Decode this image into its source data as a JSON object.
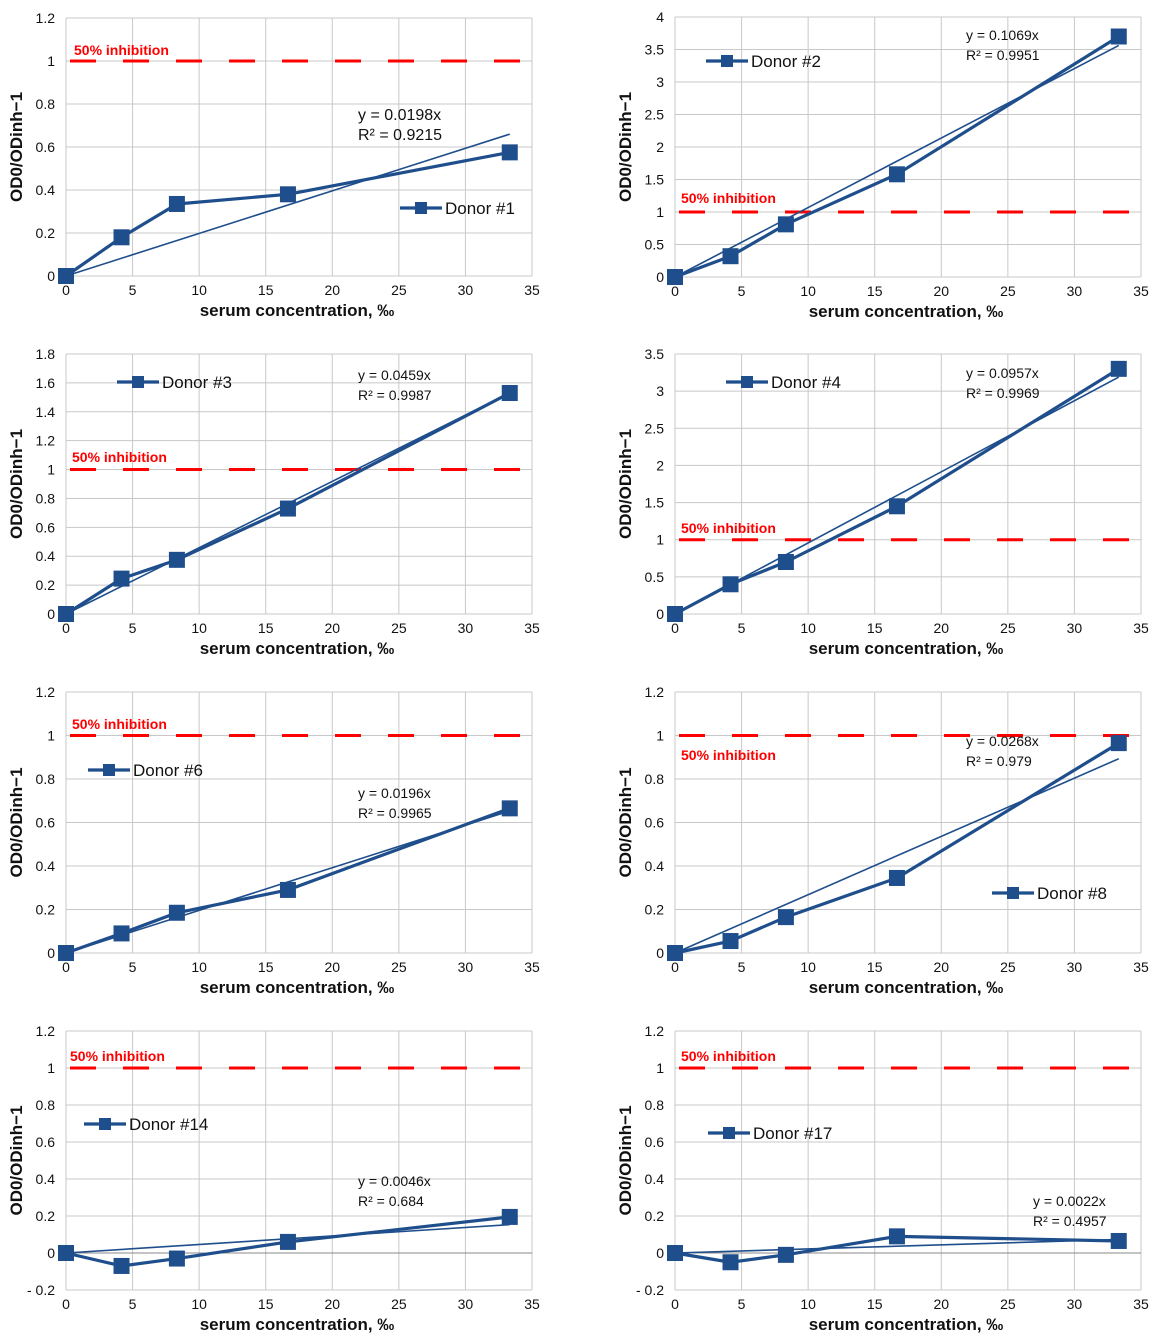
{
  "chart_data": [
    {
      "type": "line",
      "series": [
        {
          "name": "Donor #1",
          "x": [
            0,
            4.17,
            8.33,
            16.67,
            33.33
          ],
          "values": [
            0,
            0.18,
            0.335,
            0.38,
            0.575
          ]
        }
      ],
      "trendline": {
        "slope": 0.0198,
        "equation": "y = 0.0198x",
        "r2": "R² = 0.9215"
      },
      "inhibition": {
        "y": 1,
        "label": "50% inhibition"
      },
      "xlabel": "serum concentration, ‰",
      "ylabel": "OD0/ODinh−1",
      "xlim": [
        0,
        35
      ],
      "xstep": 5,
      "ylim": [
        0,
        1.2
      ],
      "ystep": 0.2,
      "xticks": [
        "0",
        "5",
        "10",
        "15",
        "20",
        "25",
        "30",
        "35"
      ],
      "yticks": [
        "0",
        "0.2",
        "0.4",
        "0.6",
        "0.8",
        "1",
        "1.2"
      ],
      "legend": "right-middle",
      "grid": true
    },
    {
      "type": "line",
      "series": [
        {
          "name": "Donor #2",
          "x": [
            0,
            4.17,
            8.33,
            16.67,
            33.33
          ],
          "values": [
            0,
            0.32,
            0.81,
            1.58,
            3.7
          ]
        }
      ],
      "trendline": {
        "slope": 0.1069,
        "equation": "y = 0.1069x",
        "r2": "R² = 0.9951"
      },
      "inhibition": {
        "y": 1,
        "label": "50% inhibition"
      },
      "xlabel": "serum concentration, ‰",
      "ylabel": "OD0/ODinh−1",
      "xlim": [
        0,
        35
      ],
      "xstep": 5,
      "ylim": [
        0,
        4
      ],
      "ystep": 0.5,
      "xticks": [
        "0",
        "5",
        "10",
        "15",
        "20",
        "25",
        "30",
        "35"
      ],
      "yticks": [
        "0",
        "0.5",
        "1",
        "1.5",
        "2",
        "2.5",
        "3",
        "3.5",
        "4"
      ],
      "legend": "top-left",
      "grid": true
    },
    {
      "type": "line",
      "series": [
        {
          "name": "Donor #3",
          "x": [
            0,
            4.17,
            8.33,
            16.67,
            33.33
          ],
          "values": [
            0,
            0.245,
            0.375,
            0.73,
            1.53
          ]
        }
      ],
      "trendline": {
        "slope": 0.0459,
        "equation": "y = 0.0459x",
        "r2": "R² = 0.9987"
      },
      "inhibition": {
        "y": 1,
        "label": "50% inhibition"
      },
      "xlabel": "serum concentration, ‰",
      "ylabel": "OD0/ODinh−1",
      "xlim": [
        0,
        35
      ],
      "xstep": 5,
      "ylim": [
        0,
        1.8
      ],
      "ystep": 0.2,
      "xticks": [
        "0",
        "5",
        "10",
        "15",
        "20",
        "25",
        "30",
        "35"
      ],
      "yticks": [
        "0",
        "0.2",
        "0.4",
        "0.6",
        "0.8",
        "1",
        "1.2",
        "1.4",
        "1.6",
        "1.8"
      ],
      "legend": "top-left",
      "grid": true
    },
    {
      "type": "line",
      "series": [
        {
          "name": "Donor #4",
          "x": [
            0,
            4.17,
            8.33,
            16.67,
            33.33
          ],
          "values": [
            0,
            0.4,
            0.7,
            1.45,
            3.3
          ]
        }
      ],
      "trendline": {
        "slope": 0.0957,
        "equation": "y = 0.0957x",
        "r2": "R² = 0.9969"
      },
      "inhibition": {
        "y": 1,
        "label": "50% inhibition"
      },
      "xlabel": "serum concentration, ‰",
      "ylabel": "OD0/ODinh−1",
      "xlim": [
        0,
        35
      ],
      "xstep": 5,
      "ylim": [
        0,
        3.5
      ],
      "ystep": 0.5,
      "xticks": [
        "0",
        "5",
        "10",
        "15",
        "20",
        "25",
        "30",
        "35"
      ],
      "yticks": [
        "0",
        "0.5",
        "1",
        "1.5",
        "2",
        "2.5",
        "3",
        "3.5"
      ],
      "legend": "top-left",
      "grid": true
    },
    {
      "type": "line",
      "series": [
        {
          "name": "Donor #6",
          "x": [
            0,
            4.17,
            8.33,
            16.67,
            33.33
          ],
          "values": [
            0,
            0.09,
            0.185,
            0.29,
            0.665
          ]
        }
      ],
      "trendline": {
        "slope": 0.0196,
        "equation": "y = 0.0196x",
        "r2": "R² = 0.9965"
      },
      "inhibition": {
        "y": 1,
        "label": "50% inhibition"
      },
      "xlabel": "serum concentration, ‰",
      "ylabel": "OD0/ODinh−1",
      "xlim": [
        0,
        35
      ],
      "xstep": 5,
      "ylim": [
        0,
        1.2
      ],
      "ystep": 0.2,
      "xticks": [
        "0",
        "5",
        "10",
        "15",
        "20",
        "25",
        "30",
        "35"
      ],
      "yticks": [
        "0",
        "0.2",
        "0.4",
        "0.6",
        "0.8",
        "1",
        "1.2"
      ],
      "legend": "left-middle",
      "grid": true
    },
    {
      "type": "line",
      "series": [
        {
          "name": "Donor #8",
          "x": [
            0,
            4.17,
            8.33,
            16.67,
            33.33
          ],
          "values": [
            0,
            0.055,
            0.165,
            0.345,
            0.965
          ]
        }
      ],
      "trendline": {
        "slope": 0.0268,
        "equation": "y = 0.0268x",
        "r2": "R² = 0.979"
      },
      "inhibition": {
        "y": 1,
        "label": "50% inhibition"
      },
      "xlabel": "serum concentration, ‰",
      "ylabel": "OD0/ODinh−1",
      "xlim": [
        0,
        35
      ],
      "xstep": 5,
      "ylim": [
        0,
        1.2
      ],
      "ystep": 0.2,
      "xticks": [
        "0",
        "5",
        "10",
        "15",
        "20",
        "25",
        "30",
        "35"
      ],
      "yticks": [
        "0",
        "0.2",
        "0.4",
        "0.6",
        "0.8",
        "1",
        "1.2"
      ],
      "legend": "right-lower",
      "grid": true
    },
    {
      "type": "line",
      "series": [
        {
          "name": "Donor #14",
          "x": [
            0,
            4.17,
            8.33,
            16.67,
            33.33
          ],
          "values": [
            0,
            -0.07,
            -0.03,
            0.06,
            0.195
          ]
        }
      ],
      "trendline": {
        "slope": 0.0046,
        "equation": "y = 0.0046x",
        "r2": "R² = 0.684"
      },
      "inhibition": {
        "y": 1,
        "label": "50% inhibition"
      },
      "xlabel": "serum concentration, ‰",
      "ylabel": "OD0/ODinh−1",
      "xlim": [
        0,
        35
      ],
      "xstep": 5,
      "ylim": [
        -0.2,
        1.2
      ],
      "ystep": 0.2,
      "xticks": [
        "0",
        "5",
        "10",
        "15",
        "20",
        "25",
        "30",
        "35"
      ],
      "yticks": [
        "- 0.2",
        "0",
        "0.2",
        "0.4",
        "0.6",
        "0.8",
        "1",
        "1.2"
      ],
      "legend": "left-middle",
      "grid": true
    },
    {
      "type": "line",
      "series": [
        {
          "name": "Donor #17",
          "x": [
            0,
            4.17,
            8.33,
            16.67,
            33.33
          ],
          "values": [
            0,
            -0.05,
            -0.01,
            0.09,
            0.065
          ]
        }
      ],
      "trendline": {
        "slope": 0.0022,
        "equation": "y = 0.0022x",
        "r2": "R² = 0.4957"
      },
      "inhibition": {
        "y": 1,
        "label": "50% inhibition"
      },
      "xlabel": "serum concentration, ‰",
      "ylabel": "OD0/ODinh−1",
      "xlim": [
        0,
        35
      ],
      "xstep": 5,
      "ylim": [
        -0.2,
        1.2
      ],
      "ystep": 0.2,
      "xticks": [
        "0",
        "5",
        "10",
        "15",
        "20",
        "25",
        "30",
        "35"
      ],
      "yticks": [
        "- 0.2",
        "0",
        "0.2",
        "0.4",
        "0.6",
        "0.8",
        "1",
        "1.2"
      ],
      "legend": "left-middle",
      "grid": true
    }
  ],
  "colors": {
    "series": "#1f4e8c",
    "inhibition": "#ff0000",
    "grid": "#c8c8c8",
    "axis_text": "#111111"
  }
}
